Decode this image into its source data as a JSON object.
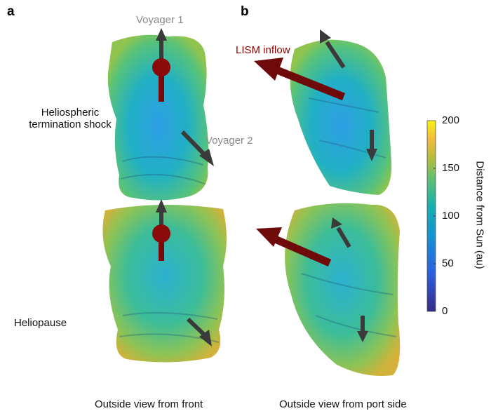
{
  "panels": {
    "a": "a",
    "b": "b"
  },
  "labels": {
    "voyager1": "Voyager 1",
    "voyager2": "Voyager 2",
    "lism_inflow": "LISM inflow",
    "termination_shock_line1": "Heliospheric",
    "termination_shock_line2": "termination shock",
    "heliopause": "Heliopause"
  },
  "captions": {
    "front": "Outside view from front",
    "port": "Outside view from port side"
  },
  "colorbar": {
    "label": "Distance from Sun (au)",
    "ticks": [
      "200",
      "150",
      "100",
      "50",
      "0"
    ],
    "range": [
      0,
      200
    ],
    "colormap": "parula",
    "colors": [
      "#352a87",
      "#2c6ee0",
      "#0fa3c8",
      "#3cbf8a",
      "#b8bc3b",
      "#f9d82b",
      "#f9fb0e"
    ]
  },
  "colors": {
    "arrow_gray": "#3a3a3a",
    "lism_red": "#7a0a0a",
    "voyager_label": "#8a8a8a"
  }
}
